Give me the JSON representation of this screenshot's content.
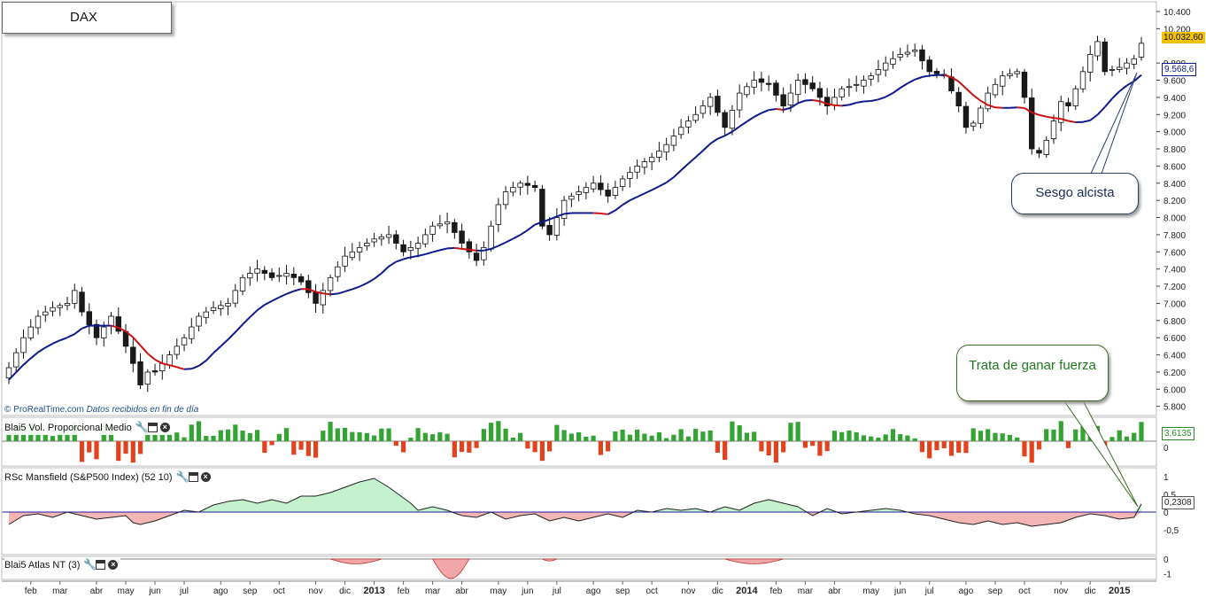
{
  "title": "DAX",
  "credit": {
    "source": "© ProRealTime.com",
    "note": "Datos recibidos en fin de día"
  },
  "annotations": {
    "blue": "Sesgo alcista",
    "green": "Trata de ganar fuerza"
  },
  "panels": {
    "vol": {
      "label": "Blai5 Vol. Proporcional Medio",
      "value": "3,6135",
      "ticks": [
        "0"
      ]
    },
    "rsc": {
      "label": "RSc Mansfield (S&P500 Index) (52 10)",
      "value": "0,2308",
      "ticks": [
        "1",
        "0,5",
        "0",
        "-0,5"
      ]
    },
    "atlas": {
      "label": "Blai5 Atlas NT (3)",
      "ticks": [
        "0",
        "-1"
      ]
    }
  },
  "colors": {
    "up_fill": "#ffffff",
    "down_fill": "#1a1a1a",
    "ma_up": "#0d1a8c",
    "ma_down": "#cc1111",
    "vol_up": "#33a333",
    "vol_down": "#e2431e",
    "rsc_pos": "#b8f0c3",
    "rsc_neg": "#f2a8a8"
  },
  "icons": [
    "wrench-icon",
    "window-icon",
    "close-icon"
  ],
  "chart_data": {
    "type": "candlestick",
    "timeframe": "weekly",
    "title": "DAX",
    "price_axis": {
      "ticks": [
        "10.400",
        "10.200",
        "9.800",
        "9.600",
        "9.400",
        "9.200",
        "9.000",
        "8.800",
        "8.600",
        "8.400",
        "8.200",
        "8.000",
        "7.800",
        "7.600",
        "7.400",
        "7.200",
        "7.000",
        "6.800",
        "6.600",
        "6.400",
        "6.200",
        "6.000",
        "5.800"
      ],
      "ylim": [
        5750,
        10450
      ]
    },
    "last_price": "10.032,60",
    "ma_last": "9.568,6",
    "x_labels": [
      {
        "label": "feb",
        "i": 3
      },
      {
        "label": "mar",
        "i": 7
      },
      {
        "label": "abr",
        "i": 12
      },
      {
        "label": "may",
        "i": 16
      },
      {
        "label": "jun",
        "i": 20
      },
      {
        "label": "jul",
        "i": 24
      },
      {
        "label": "ago",
        "i": 29
      },
      {
        "label": "sep",
        "i": 33
      },
      {
        "label": "oct",
        "i": 37
      },
      {
        "label": "nov",
        "i": 42
      },
      {
        "label": "dic",
        "i": 46
      },
      {
        "label": "2013",
        "i": 50,
        "bold": true
      },
      {
        "label": "feb",
        "i": 54
      },
      {
        "label": "mar",
        "i": 58
      },
      {
        "label": "abr",
        "i": 62
      },
      {
        "label": "may",
        "i": 67
      },
      {
        "label": "jun",
        "i": 71
      },
      {
        "label": "jul",
        "i": 75
      },
      {
        "label": "ago",
        "i": 80
      },
      {
        "label": "sep",
        "i": 84
      },
      {
        "label": "oct",
        "i": 88
      },
      {
        "label": "nov",
        "i": 93
      },
      {
        "label": "dic",
        "i": 97
      },
      {
        "label": "2014",
        "i": 101,
        "bold": true
      },
      {
        "label": "feb",
        "i": 105
      },
      {
        "label": "mar",
        "i": 109
      },
      {
        "label": "abr",
        "i": 113
      },
      {
        "label": "may",
        "i": 118
      },
      {
        "label": "jun",
        "i": 122
      },
      {
        "label": "jul",
        "i": 126
      },
      {
        "label": "ago",
        "i": 131
      },
      {
        "label": "sep",
        "i": 135
      },
      {
        "label": "oct",
        "i": 139
      },
      {
        "label": "nov",
        "i": 144
      },
      {
        "label": "dic",
        "i": 148
      },
      {
        "label": "2015",
        "i": 152,
        "bold": true
      }
    ],
    "close_anchors": [
      [
        0,
        6250
      ],
      [
        2,
        6600
      ],
      [
        4,
        6850
      ],
      [
        6,
        6950
      ],
      [
        8,
        7000
      ],
      [
        9,
        7150
      ],
      [
        10,
        6900
      ],
      [
        12,
        6600
      ],
      [
        14,
        6850
      ],
      [
        16,
        6500
      ],
      [
        17,
        6300
      ],
      [
        18,
        6050
      ],
      [
        19,
        6200
      ],
      [
        20,
        6200
      ],
      [
        22,
        6400
      ],
      [
        24,
        6600
      ],
      [
        26,
        6850
      ],
      [
        28,
        6950
      ],
      [
        30,
        7000
      ],
      [
        32,
        7300
      ],
      [
        34,
        7400
      ],
      [
        36,
        7300
      ],
      [
        38,
        7350
      ],
      [
        40,
        7250
      ],
      [
        42,
        7000
      ],
      [
        44,
        7300
      ],
      [
        46,
        7550
      ],
      [
        48,
        7650
      ],
      [
        50,
        7750
      ],
      [
        52,
        7800
      ],
      [
        54,
        7600
      ],
      [
        55,
        7650
      ],
      [
        56,
        7700
      ],
      [
        58,
        7900
      ],
      [
        60,
        7950
      ],
      [
        62,
        7700
      ],
      [
        64,
        7500
      ],
      [
        65,
        7650
      ],
      [
        66,
        7900
      ],
      [
        67,
        8150
      ],
      [
        68,
        8300
      ],
      [
        70,
        8400
      ],
      [
        72,
        8350
      ],
      [
        73,
        7900
      ],
      [
        74,
        7800
      ],
      [
        75,
        8000
      ],
      [
        76,
        8200
      ],
      [
        78,
        8300
      ],
      [
        80,
        8400
      ],
      [
        82,
        8250
      ],
      [
        84,
        8450
      ],
      [
        86,
        8600
      ],
      [
        88,
        8700
      ],
      [
        90,
        8850
      ],
      [
        92,
        9050
      ],
      [
        94,
        9200
      ],
      [
        96,
        9400
      ],
      [
        98,
        9050
      ],
      [
        100,
        9450
      ],
      [
        102,
        9600
      ],
      [
        104,
        9550
      ],
      [
        106,
        9300
      ],
      [
        108,
        9600
      ],
      [
        110,
        9500
      ],
      [
        112,
        9300
      ],
      [
        114,
        9500
      ],
      [
        116,
        9550
      ],
      [
        118,
        9650
      ],
      [
        120,
        9800
      ],
      [
        122,
        9900
      ],
      [
        124,
        9950
      ],
      [
        126,
        9700
      ],
      [
        128,
        9650
      ],
      [
        130,
        9300
      ],
      [
        131,
        9050
      ],
      [
        132,
        9100
      ],
      [
        134,
        9450
      ],
      [
        136,
        9650
      ],
      [
        138,
        9700
      ],
      [
        139,
        9400
      ],
      [
        140,
        8800
      ],
      [
        141,
        8750
      ],
      [
        142,
        8900
      ],
      [
        144,
        9350
      ],
      [
        145,
        9300
      ],
      [
        146,
        9500
      ],
      [
        148,
        9900
      ],
      [
        149,
        10050
      ],
      [
        150,
        9700
      ],
      [
        152,
        9750
      ],
      [
        153,
        9800
      ],
      [
        154,
        9850
      ],
      [
        155,
        10030
      ]
    ],
    "rsc_anchors": [
      [
        0,
        -0.35
      ],
      [
        2,
        -0.1
      ],
      [
        4,
        -0.05
      ],
      [
        6,
        -0.15
      ],
      [
        8,
        0.0
      ],
      [
        10,
        -0.1
      ],
      [
        12,
        -0.2
      ],
      [
        14,
        -0.15
      ],
      [
        16,
        -0.1
      ],
      [
        17,
        -0.3
      ],
      [
        18,
        -0.35
      ],
      [
        20,
        -0.25
      ],
      [
        22,
        -0.1
      ],
      [
        24,
        0.05
      ],
      [
        26,
        0.0
      ],
      [
        28,
        0.2
      ],
      [
        30,
        0.3
      ],
      [
        32,
        0.35
      ],
      [
        34,
        0.25
      ],
      [
        36,
        0.35
      ],
      [
        38,
        0.25
      ],
      [
        40,
        0.45
      ],
      [
        42,
        0.45
      ],
      [
        44,
        0.55
      ],
      [
        46,
        0.7
      ],
      [
        48,
        0.85
      ],
      [
        50,
        0.95
      ],
      [
        52,
        0.7
      ],
      [
        54,
        0.4
      ],
      [
        55,
        0.25
      ],
      [
        56,
        0.05
      ],
      [
        58,
        0.15
      ],
      [
        60,
        0.05
      ],
      [
        62,
        -0.1
      ],
      [
        64,
        -0.15
      ],
      [
        66,
        0.0
      ],
      [
        68,
        -0.2
      ],
      [
        70,
        -0.1
      ],
      [
        72,
        -0.05
      ],
      [
        74,
        -0.25
      ],
      [
        76,
        -0.15
      ],
      [
        78,
        -0.25
      ],
      [
        80,
        -0.15
      ],
      [
        82,
        -0.05
      ],
      [
        84,
        -0.15
      ],
      [
        86,
        0.05
      ],
      [
        88,
        0.0
      ],
      [
        90,
        0.1
      ],
      [
        92,
        0.05
      ],
      [
        94,
        0.1
      ],
      [
        96,
        0.0
      ],
      [
        98,
        0.15
      ],
      [
        100,
        0.05
      ],
      [
        102,
        0.25
      ],
      [
        104,
        0.35
      ],
      [
        106,
        0.25
      ],
      [
        108,
        0.15
      ],
      [
        110,
        -0.1
      ],
      [
        112,
        0.1
      ],
      [
        114,
        -0.05
      ],
      [
        116,
        0.0
      ],
      [
        118,
        0.05
      ],
      [
        120,
        0.1
      ],
      [
        122,
        0.05
      ],
      [
        124,
        -0.05
      ],
      [
        126,
        -0.1
      ],
      [
        128,
        -0.2
      ],
      [
        130,
        -0.3
      ],
      [
        132,
        -0.35
      ],
      [
        134,
        -0.25
      ],
      [
        136,
        -0.35
      ],
      [
        138,
        -0.3
      ],
      [
        140,
        -0.4
      ],
      [
        142,
        -0.35
      ],
      [
        144,
        -0.3
      ],
      [
        146,
        -0.15
      ],
      [
        148,
        -0.05
      ],
      [
        150,
        -0.1
      ],
      [
        152,
        -0.2
      ],
      [
        154,
        -0.15
      ],
      [
        155,
        0.23
      ]
    ],
    "atlas_dips": [
      [
        44,
        51,
        0.25
      ],
      [
        58,
        63,
        1.0
      ],
      [
        73,
        75,
        0.1
      ],
      [
        98,
        106,
        0.25
      ]
    ]
  }
}
